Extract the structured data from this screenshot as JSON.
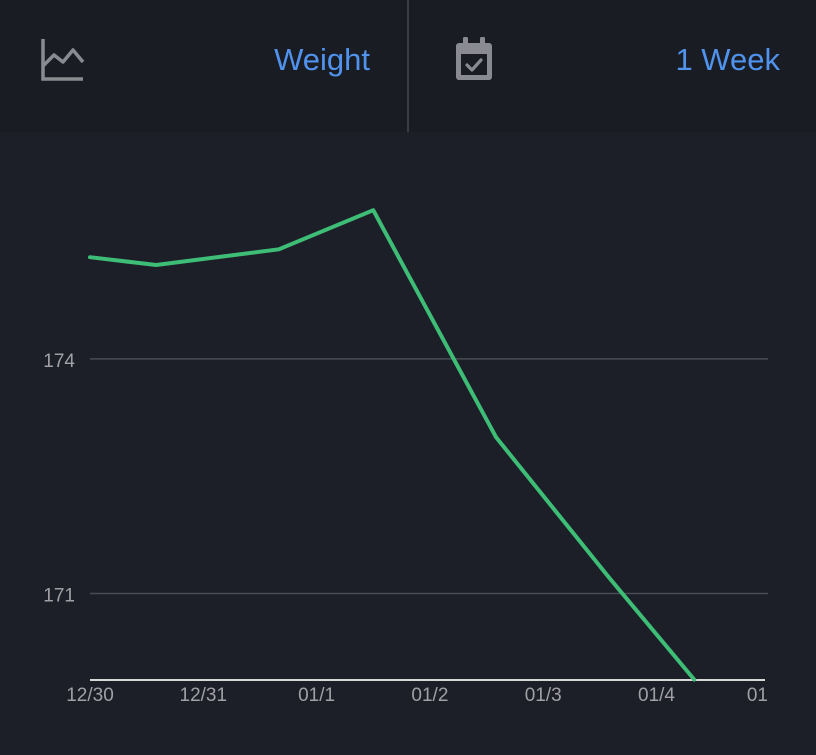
{
  "header": {
    "metric": {
      "icon": "line-chart-icon",
      "label": "Weight"
    },
    "range": {
      "icon": "calendar-check-icon",
      "label": "1 Week"
    }
  },
  "colors": {
    "background": "#1d1f28",
    "header_background": "#1a1c23",
    "accent": "#4f93ee",
    "line": "#3dbd76",
    "grid": "#4a4c54",
    "axis": "#d8d8d8",
    "tick_text": "#a0a0a6",
    "icon": "#8a8b90"
  },
  "chart_data": {
    "type": "line",
    "title": "",
    "xlabel": "",
    "ylabel": "",
    "x_ticks": [
      "12/30",
      "12/31",
      "01/1",
      "01/2",
      "01/3",
      "01/4",
      "01"
    ],
    "y_ticks": [
      171,
      174
    ],
    "ylim": [
      169.0,
      176.9
    ],
    "grid": "horizontal",
    "series": [
      {
        "x": [
          "12/30",
          "12/30 14:00",
          "12/31 16:00",
          "01/1 12:00",
          "01/2 14:00",
          "01/3 14:00",
          "01/4 08:00"
        ],
        "y": [
          175.3,
          175.2,
          175.4,
          175.9,
          173.0,
          171.2,
          169.9
        ]
      }
    ]
  }
}
